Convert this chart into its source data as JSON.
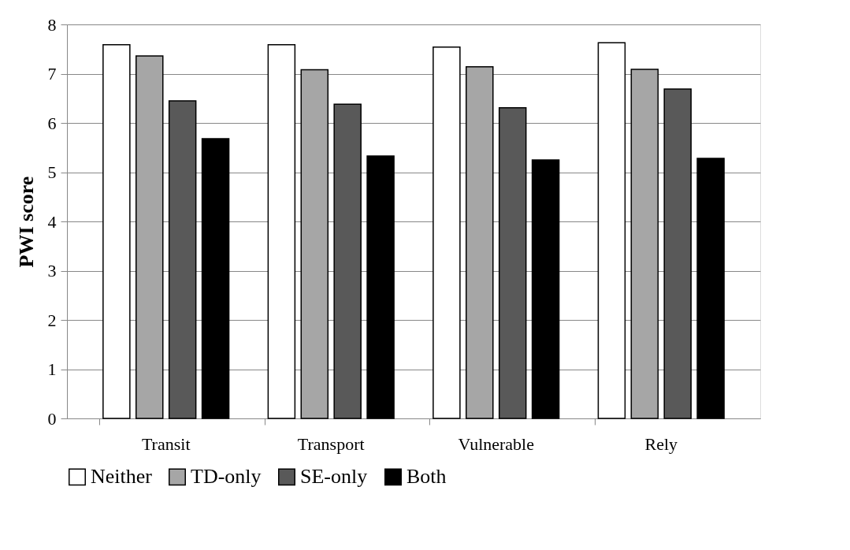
{
  "chart_data": {
    "type": "bar",
    "ylabel": "PWI score",
    "categories": [
      "Transit",
      "Transport",
      "Vulnerable",
      "Rely"
    ],
    "series": [
      {
        "name": "Neither",
        "color": "#ffffff",
        "values": [
          7.59,
          7.59,
          7.54,
          7.63
        ]
      },
      {
        "name": "TD-only",
        "color": "#a6a6a6",
        "values": [
          7.36,
          7.08,
          7.14,
          7.09
        ]
      },
      {
        "name": "SE-only",
        "color": "#595959",
        "values": [
          6.45,
          6.38,
          6.31,
          6.69
        ]
      },
      {
        "name": "Both",
        "color": "#000000",
        "values": [
          5.68,
          5.33,
          5.25,
          5.28
        ]
      }
    ],
    "ylim": [
      0,
      8
    ],
    "yticks": [
      0,
      1,
      2,
      3,
      4,
      5,
      6,
      7,
      8
    ],
    "grid": "y",
    "legend": "bottom"
  }
}
